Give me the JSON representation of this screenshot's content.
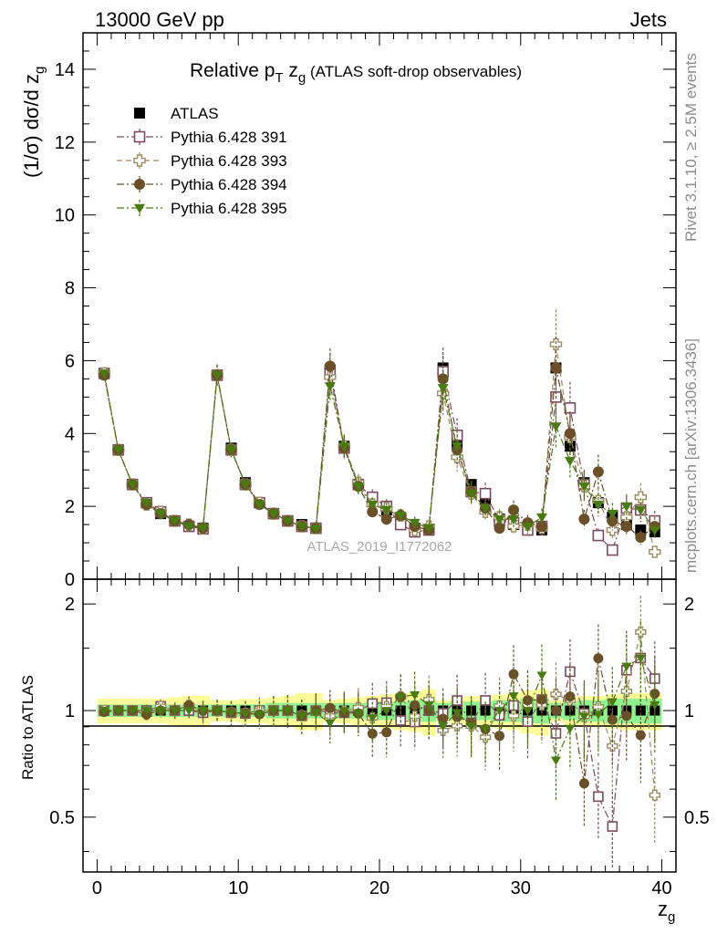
{
  "header": {
    "energy": "13000 GeV pp",
    "category": "Jets"
  },
  "side": {
    "rivet": "Rivet 3.1.10, ≥ 2.5M events",
    "mcplots": "mcplots.cern.ch [arXiv:1306.3436]"
  },
  "chart_data": {
    "type": "scatter",
    "title": "Relative pT zg (ATLAS soft-drop observables)",
    "ylabel": "(1/σ) dσ/d zg",
    "xlabel": "zg",
    "ratio_ylabel": "Ratio to ATLAS",
    "analysis": "ATLAS_2019_I1772062",
    "xlim": [
      -1,
      41
    ],
    "ylim": [
      0,
      15
    ],
    "ratio_ylim": [
      0.35,
      2.35
    ],
    "x_ticks": [
      "0",
      "10",
      "20",
      "30",
      "40"
    ],
    "y_ticks": [
      "0",
      "2",
      "4",
      "6",
      "8",
      "10",
      "12",
      "14"
    ],
    "ratio_ticks": [
      "0.5",
      "1",
      "2"
    ],
    "x": [
      0.5,
      1.5,
      2.5,
      3.5,
      4.5,
      5.5,
      6.5,
      7.5,
      8.5,
      9.5,
      10.5,
      11.5,
      12.5,
      13.5,
      14.5,
      15.5,
      16.5,
      17.5,
      18.5,
      19.5,
      20.5,
      21.5,
      22.5,
      23.5,
      24.5,
      25.5,
      26.5,
      27.5,
      28.5,
      29.5,
      30.5,
      31.5,
      32.5,
      33.5,
      34.5,
      35.5,
      36.5,
      37.5,
      38.5,
      39.5
    ],
    "legend_position": "top-left",
    "series": [
      {
        "name": "ATLAS",
        "color": "#000000",
        "marker": "square-filled",
        "values": [
          5.65,
          3.55,
          2.6,
          2.1,
          1.8,
          1.6,
          1.45,
          1.4,
          5.6,
          3.6,
          2.65,
          2.1,
          1.8,
          1.6,
          1.5,
          1.4,
          5.75,
          3.65,
          2.6,
          2.15,
          1.9,
          1.6,
          1.4,
          1.35,
          5.8,
          3.7,
          2.6,
          2.2,
          1.65,
          1.5,
          1.45,
          1.35,
          5.8,
          3.65,
          2.65,
          2.1,
          1.7,
          1.5,
          1.35,
          1.3
        ],
        "ratio_band_inner": [
          0.04,
          0.04,
          0.04,
          0.04,
          0.04,
          0.04,
          0.04,
          0.04,
          0.04,
          0.04,
          0.04,
          0.04,
          0.05,
          0.05,
          0.05,
          0.05,
          0.05,
          0.05,
          0.05,
          0.06,
          0.06,
          0.06,
          0.07,
          0.07,
          0.05,
          0.06,
          0.06,
          0.06,
          0.07,
          0.07,
          0.08,
          0.08,
          0.05,
          0.06,
          0.07,
          0.07,
          0.08,
          0.08,
          0.08,
          0.08
        ],
        "ratio_band_outer": [
          0.08,
          0.08,
          0.08,
          0.08,
          0.08,
          0.09,
          0.1,
          0.1,
          0.07,
          0.07,
          0.08,
          0.08,
          0.09,
          0.1,
          0.12,
          0.12,
          0.07,
          0.08,
          0.09,
          0.1,
          0.11,
          0.12,
          0.13,
          0.15,
          0.07,
          0.09,
          0.1,
          0.1,
          0.11,
          0.12,
          0.14,
          0.15,
          0.07,
          0.09,
          0.1,
          0.1,
          0.11,
          0.12,
          0.12,
          0.12
        ]
      },
      {
        "name": "Pythia 6.428 391",
        "color": "#7b4a60",
        "marker": "square-open",
        "line": "dashdot",
        "values": [
          5.65,
          3.55,
          2.6,
          2.1,
          1.85,
          1.6,
          1.45,
          1.38,
          5.6,
          3.55,
          2.6,
          2.1,
          1.8,
          1.6,
          1.45,
          1.4,
          5.7,
          3.6,
          2.6,
          2.25,
          2.0,
          1.5,
          1.3,
          1.35,
          5.7,
          3.95,
          2.4,
          2.35,
          1.6,
          1.55,
          1.35,
          1.45,
          5.0,
          4.7,
          2.6,
          1.2,
          0.8,
          1.95,
          1.9,
          1.6
        ]
      },
      {
        "name": "Pythia 6.428 393",
        "color": "#9b8a5e",
        "marker": "cross-open",
        "line": "dashed",
        "values": [
          5.65,
          3.55,
          2.6,
          2.05,
          1.85,
          1.6,
          1.5,
          1.4,
          5.6,
          3.55,
          2.6,
          2.1,
          1.8,
          1.6,
          1.45,
          1.4,
          5.55,
          3.65,
          2.65,
          2.05,
          1.95,
          1.75,
          1.35,
          1.45,
          5.1,
          3.35,
          2.35,
          1.85,
          1.7,
          1.45,
          1.5,
          1.4,
          6.45,
          3.9,
          2.55,
          2.15,
          1.35,
          1.7,
          2.25,
          0.75
        ]
      },
      {
        "name": "Pythia 6.428 394",
        "color": "#6b4e2a",
        "marker": "circle-filled",
        "line": "dashdot",
        "values": [
          5.6,
          3.55,
          2.6,
          2.05,
          1.8,
          1.6,
          1.5,
          1.4,
          5.6,
          3.55,
          2.6,
          2.05,
          1.8,
          1.6,
          1.45,
          1.4,
          5.85,
          3.6,
          2.55,
          1.85,
          1.65,
          1.75,
          1.45,
          1.35,
          5.5,
          3.55,
          2.4,
          1.95,
          1.4,
          1.9,
          1.55,
          1.45,
          5.8,
          4.0,
          1.65,
          2.95,
          1.6,
          1.45,
          1.15,
          1.45
        ]
      },
      {
        "name": "Pythia 6.428 395",
        "color": "#4a7a12",
        "marker": "triangle-down-filled",
        "line": "dashdot",
        "values": [
          5.65,
          3.55,
          2.6,
          2.1,
          1.8,
          1.6,
          1.45,
          1.4,
          5.6,
          3.55,
          2.6,
          2.05,
          1.8,
          1.6,
          1.45,
          1.38,
          5.3,
          3.65,
          2.55,
          2.05,
          1.9,
          1.75,
          1.55,
          1.4,
          5.25,
          3.65,
          2.35,
          1.95,
          1.65,
          1.65,
          1.45,
          1.7,
          4.2,
          3.25,
          2.55,
          2.05,
          1.8,
          2.0,
          1.9,
          1.35
        ]
      }
    ]
  }
}
